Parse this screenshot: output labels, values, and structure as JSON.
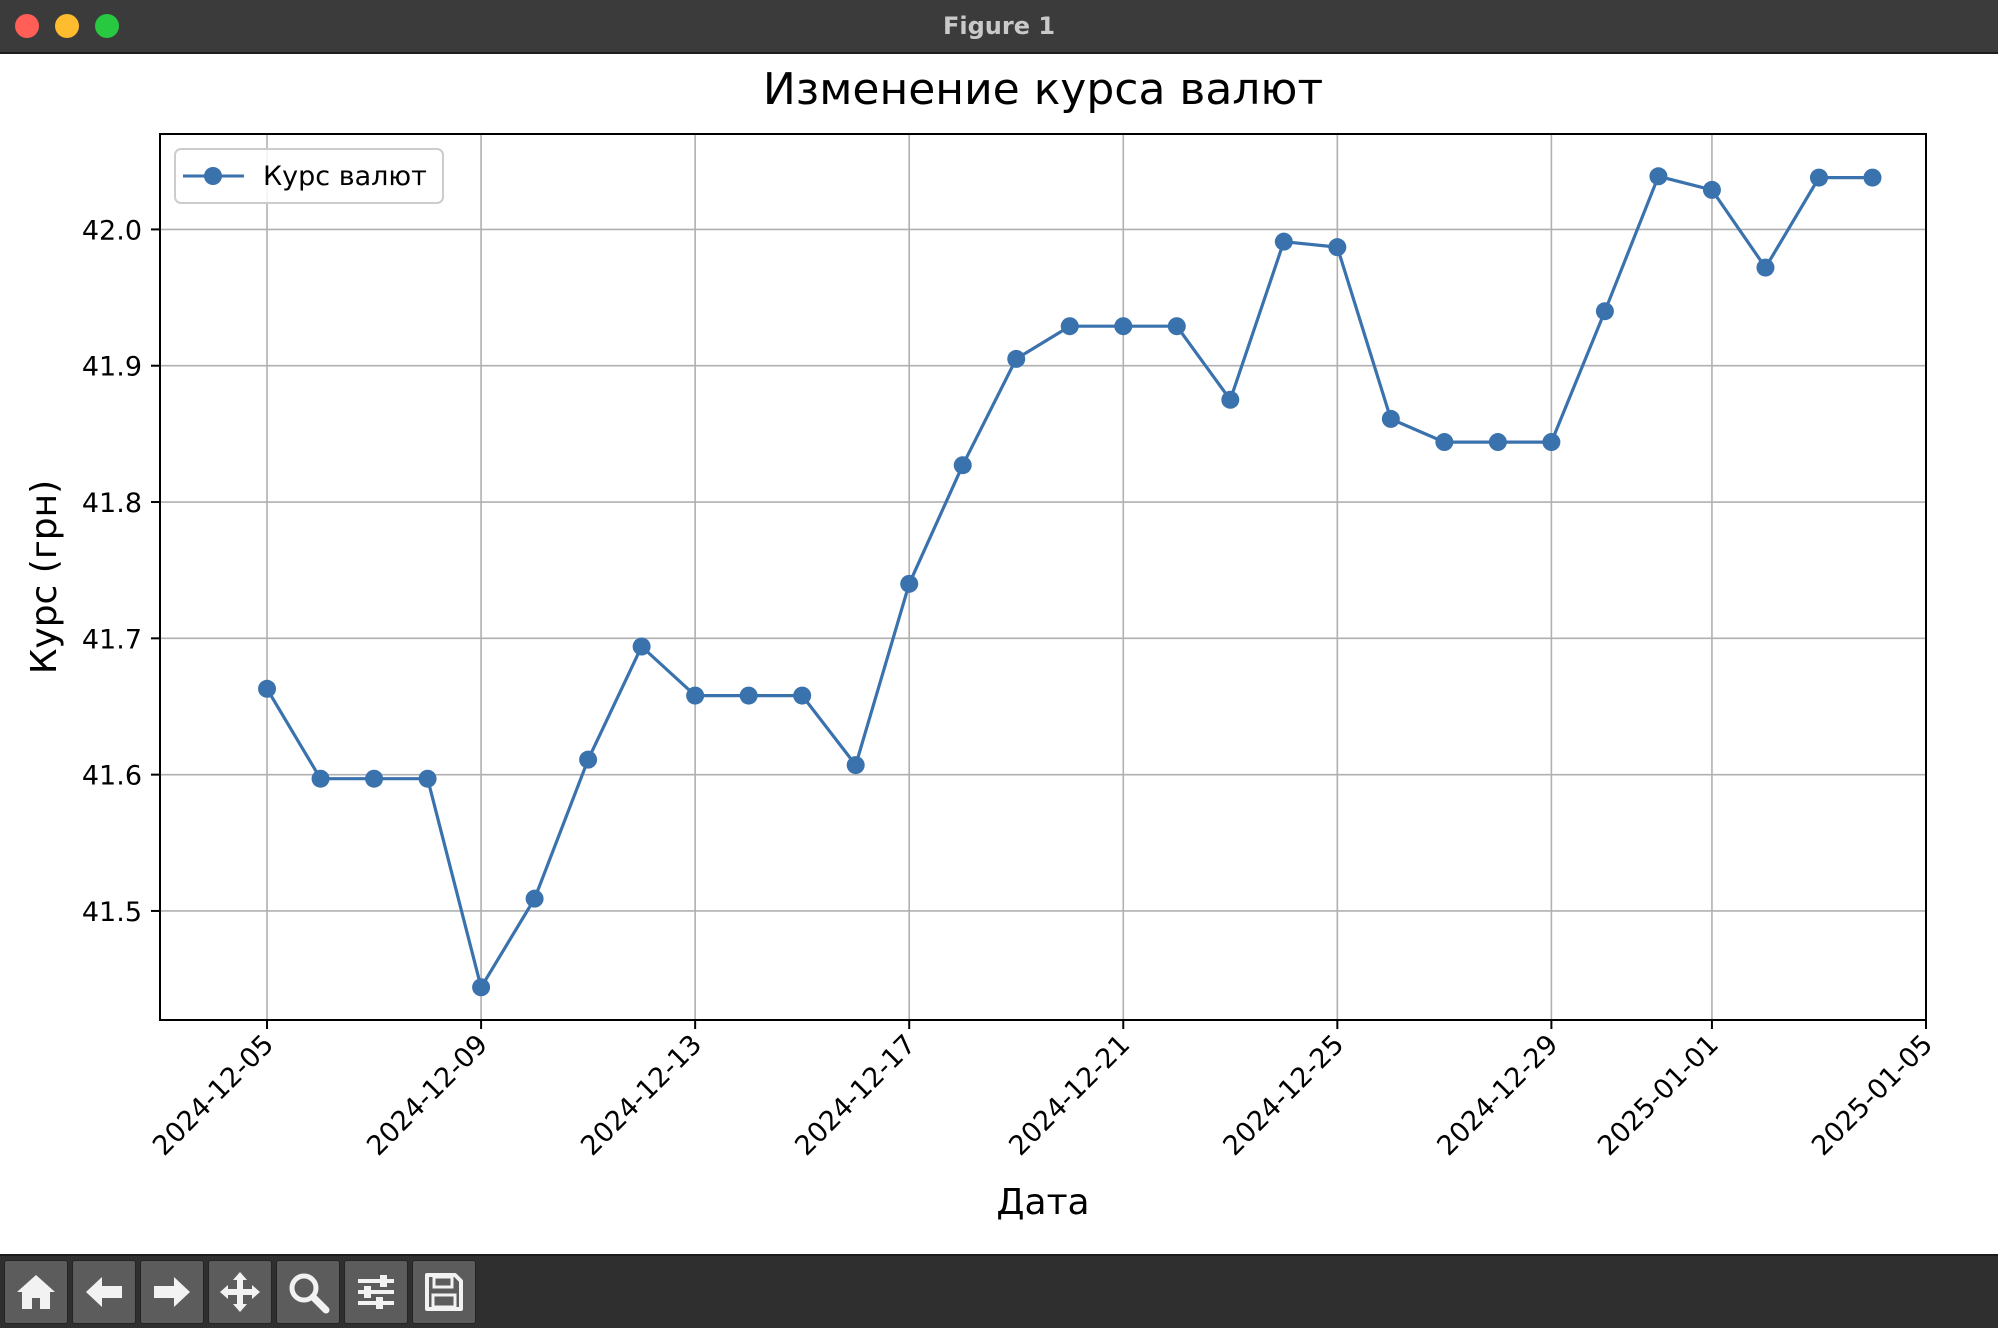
{
  "window": {
    "title": "Figure 1"
  },
  "toolbar": {
    "buttons": [
      {
        "icon": "home-icon"
      },
      {
        "icon": "back-arrow-icon"
      },
      {
        "icon": "forward-arrow-icon"
      },
      {
        "icon": "pan-move-icon"
      },
      {
        "icon": "zoom-magnifier-icon"
      },
      {
        "icon": "configure-subplots-icon"
      },
      {
        "icon": "save-floppy-icon"
      }
    ]
  },
  "chart_data": {
    "type": "line",
    "title": "Изменение курса валют",
    "xlabel": "Дата",
    "ylabel": "Курс (грн)",
    "x": [
      "2024-12-05",
      "2024-12-06",
      "2024-12-07",
      "2024-12-08",
      "2024-12-09",
      "2024-12-10",
      "2024-12-11",
      "2024-12-12",
      "2024-12-13",
      "2024-12-14",
      "2024-12-15",
      "2024-12-16",
      "2024-12-17",
      "2024-12-18",
      "2024-12-19",
      "2024-12-20",
      "2024-12-21",
      "2024-12-22",
      "2024-12-23",
      "2024-12-24",
      "2024-12-25",
      "2024-12-26",
      "2024-12-27",
      "2024-12-28",
      "2024-12-29",
      "2024-12-30",
      "2024-12-31",
      "2025-01-01",
      "2025-01-02",
      "2025-01-03",
      "2025-01-04"
    ],
    "series": [
      {
        "name": "Курс валют",
        "color": "#3a72ad",
        "marker": "circle",
        "values": [
          41.663,
          41.597,
          41.597,
          41.597,
          41.444,
          41.509,
          41.611,
          41.694,
          41.658,
          41.658,
          41.658,
          41.607,
          41.74,
          41.827,
          41.905,
          41.929,
          41.929,
          41.929,
          41.875,
          41.991,
          41.987,
          41.861,
          41.844,
          41.844,
          41.844,
          41.94,
          42.039,
          42.029,
          41.972,
          42.038,
          42.038
        ]
      }
    ],
    "xticks": [
      "2024-12-05",
      "2024-12-09",
      "2024-12-13",
      "2024-12-17",
      "2024-12-21",
      "2024-12-25",
      "2024-12-29",
      "2025-01-01",
      "2025-01-05"
    ],
    "yticks": [
      "41.5",
      "41.6",
      "41.7",
      "41.8",
      "41.9",
      "42.0"
    ],
    "xlim": [
      "2024-12-03",
      "2025-01-05"
    ],
    "ylim": [
      41.42,
      42.07
    ],
    "grid": true,
    "legend": {
      "position": "top-left",
      "entries": [
        "Курс валют"
      ]
    }
  }
}
